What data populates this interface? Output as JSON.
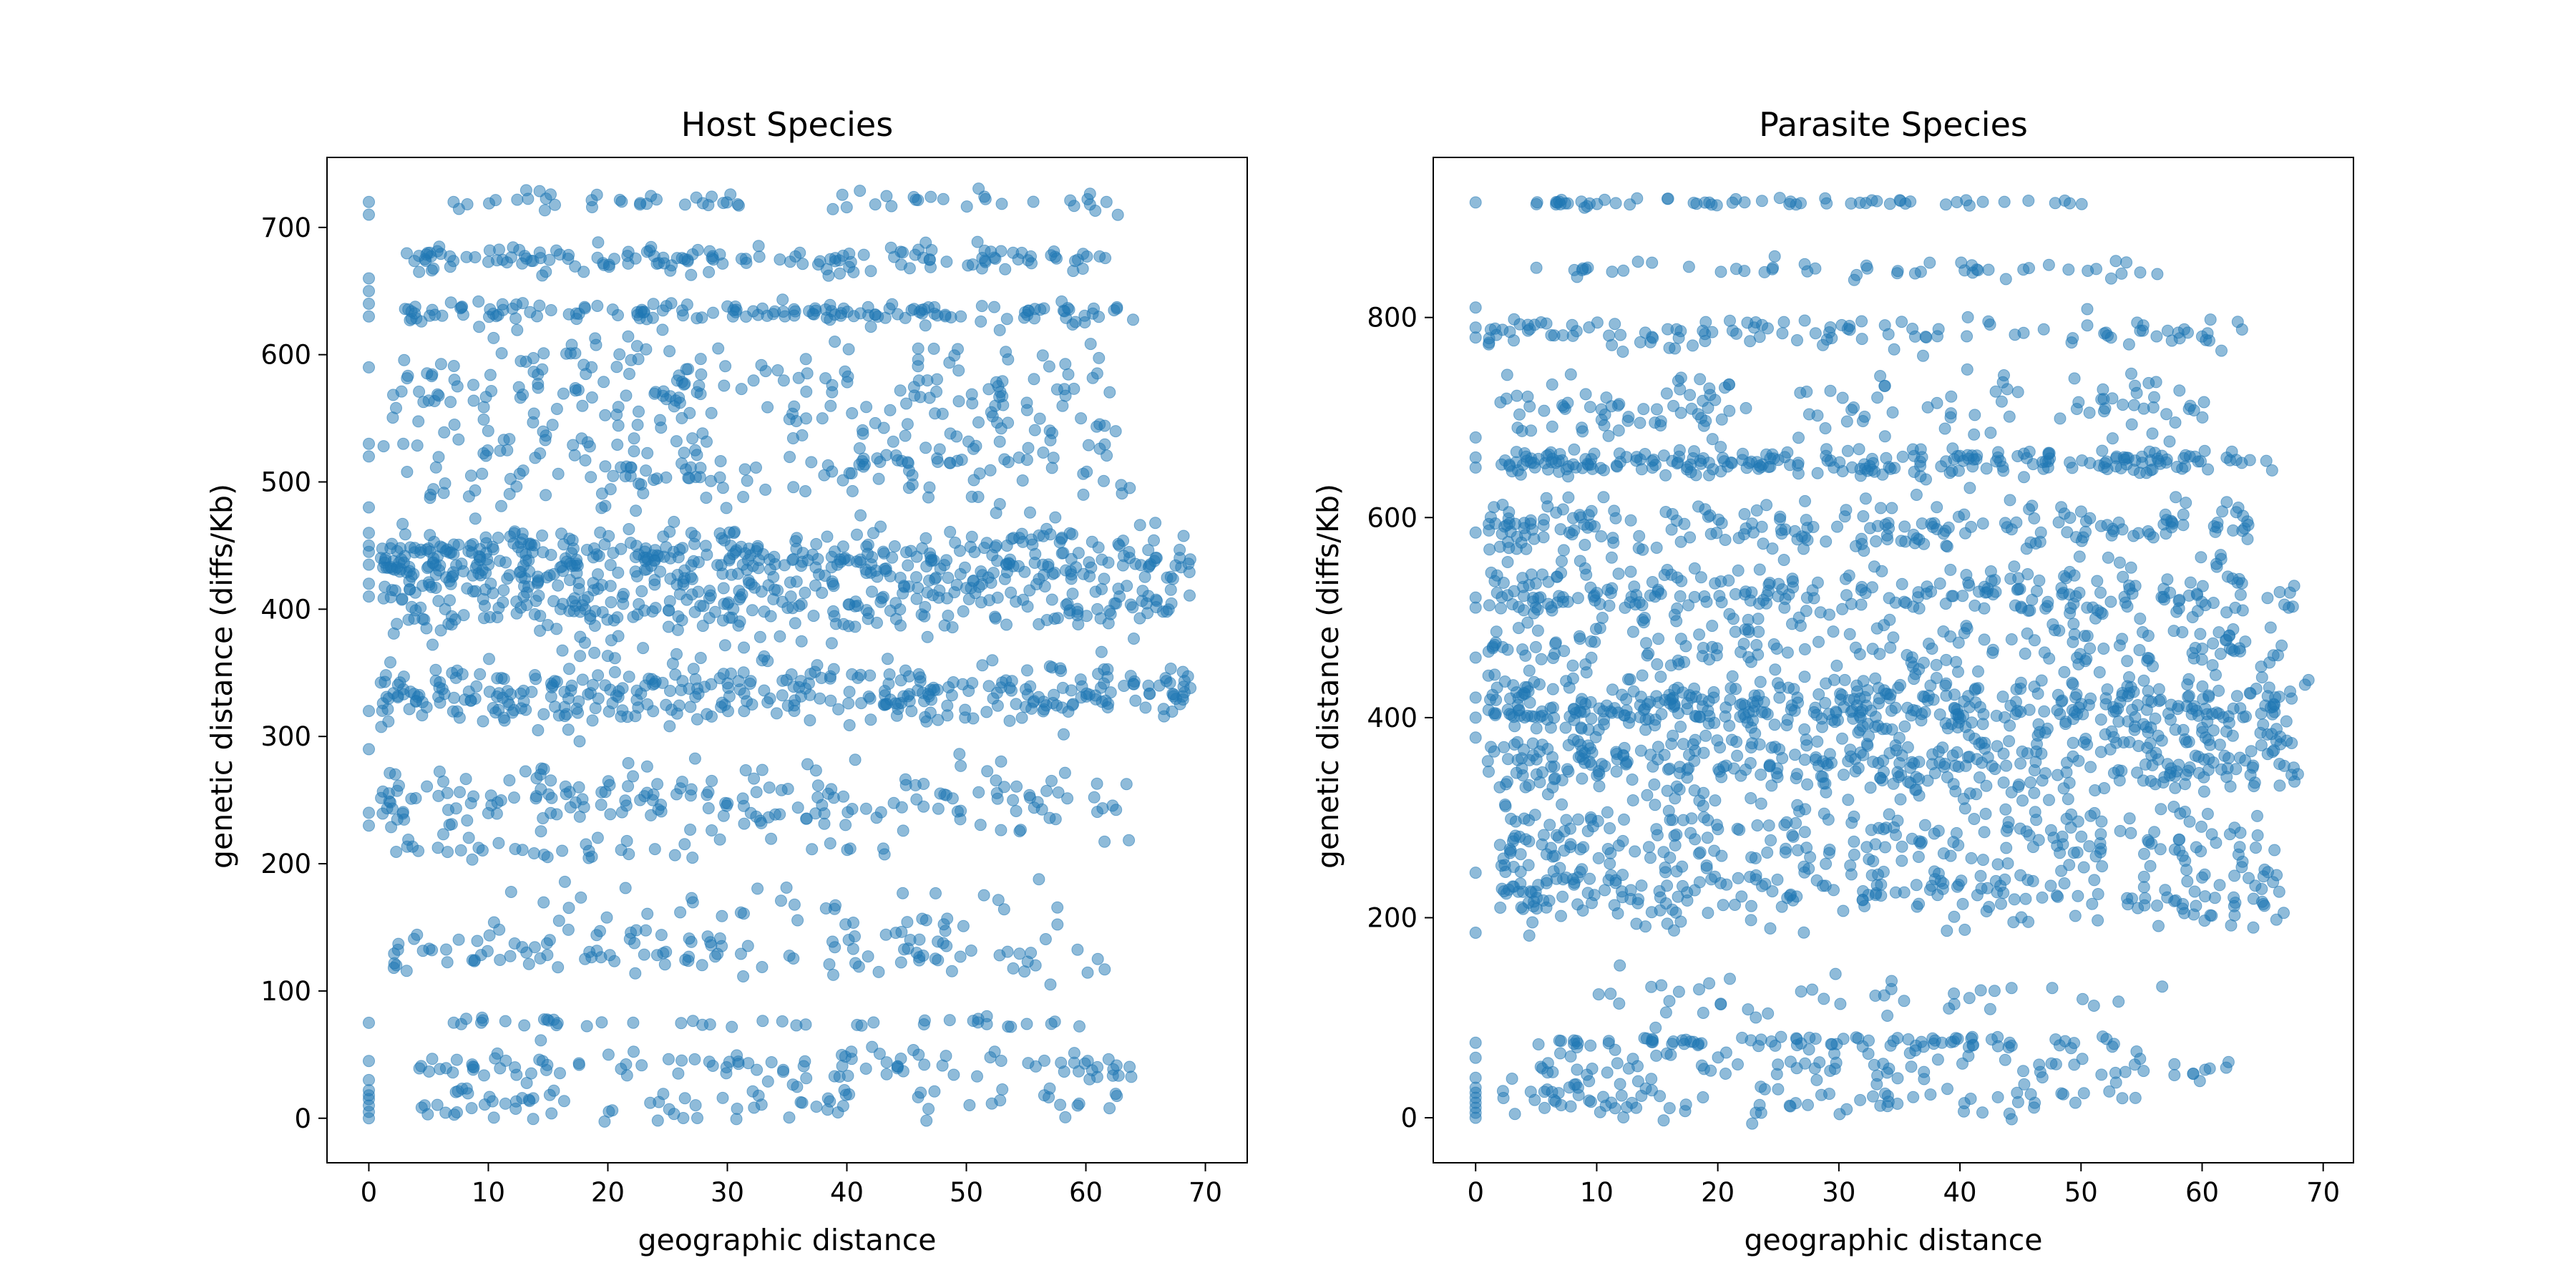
{
  "chart_data": [
    {
      "type": "scatter",
      "title": "Host Species",
      "xlabel": "geographic distance",
      "ylabel": "genetic distance (diffs/Kb)",
      "xlim": [
        -3.5,
        73.5
      ],
      "ylim": [
        -35,
        755
      ],
      "xticks": [
        0,
        10,
        20,
        30,
        40,
        50,
        60,
        70
      ],
      "yticks": [
        0,
        100,
        200,
        300,
        400,
        500,
        600,
        700
      ],
      "grid": false,
      "marker_color": "#1f77b4",
      "marker_alpha": 0.5,
      "density_bands": [
        {
          "y": 720,
          "spread": 4,
          "x_range": [
            7,
            63
          ],
          "weight": 0.35
        },
        {
          "y": 675,
          "spread": 6,
          "x_range": [
            3,
            62
          ],
          "weight": 0.9
        },
        {
          "y": 633,
          "spread": 4,
          "x_range": [
            3,
            64
          ],
          "weight": 0.9
        },
        {
          "y": 570,
          "spread": 22,
          "x_range": [
            2,
            63
          ],
          "weight": 1.3
        },
        {
          "y": 510,
          "spread": 18,
          "x_range": [
            1,
            64
          ],
          "weight": 1.0
        },
        {
          "y": 440,
          "spread": 12,
          "x_range": [
            1,
            69
          ],
          "weight": 2.4
        },
        {
          "y": 405,
          "spread": 14,
          "x_range": [
            1,
            68
          ],
          "weight": 1.8
        },
        {
          "y": 335,
          "spread": 12,
          "x_range": [
            1,
            69
          ],
          "weight": 2.2
        },
        {
          "y": 250,
          "spread": 15,
          "x_range": [
            1,
            64
          ],
          "weight": 1.2
        },
        {
          "y": 210,
          "spread": 4,
          "x_range": [
            2,
            45
          ],
          "weight": 0.2
        },
        {
          "y": 165,
          "spread": 12,
          "x_range": [
            10,
            58
          ],
          "weight": 0.25
        },
        {
          "y": 130,
          "spread": 10,
          "x_range": [
            2,
            62
          ],
          "weight": 0.7
        },
        {
          "y": 75,
          "spread": 2,
          "x_range": [
            7,
            61
          ],
          "weight": 0.25
        },
        {
          "y": 42,
          "spread": 6,
          "x_range": [
            4,
            64
          ],
          "weight": 0.6
        },
        {
          "y": 12,
          "spread": 7,
          "x_range": [
            2,
            63
          ],
          "weight": 0.5
        }
      ],
      "axis_column_x": 0,
      "axis_column_y": [
        0,
        5,
        10,
        15,
        18,
        22,
        30,
        45,
        75,
        230,
        240,
        290,
        320,
        410,
        420,
        435,
        445,
        450,
        460,
        480,
        520,
        530,
        590,
        630,
        640,
        650,
        660,
        710,
        720
      ]
    },
    {
      "type": "scatter",
      "title": "Parasite Species",
      "xlabel": "geographic distance",
      "ylabel": "genetic distance (diffs/Kb)",
      "xlim": [
        -3.5,
        72.5
      ],
      "ylim": [
        -45,
        960
      ],
      "xticks": [
        0,
        10,
        20,
        30,
        40,
        50,
        60,
        70
      ],
      "yticks": [
        0,
        200,
        400,
        600,
        800
      ],
      "grid": false,
      "marker_color": "#1f77b4",
      "marker_alpha": 0.5,
      "density_bands": [
        {
          "y": 915,
          "spread": 2,
          "x_range": [
            5,
            51
          ],
          "weight": 0.35
        },
        {
          "y": 848,
          "spread": 4,
          "x_range": [
            5,
            58
          ],
          "weight": 0.3
        },
        {
          "y": 785,
          "spread": 8,
          "x_range": [
            1,
            64
          ],
          "weight": 0.7
        },
        {
          "y": 710,
          "spread": 18,
          "x_range": [
            2,
            63
          ],
          "weight": 0.8
        },
        {
          "y": 655,
          "spread": 6,
          "x_range": [
            2,
            66
          ],
          "weight": 1.4
        },
        {
          "y": 590,
          "spread": 14,
          "x_range": [
            1,
            64
          ],
          "weight": 1.3
        },
        {
          "y": 525,
          "spread": 14,
          "x_range": [
            1,
            68
          ],
          "weight": 1.5
        },
        {
          "y": 470,
          "spread": 18,
          "x_range": [
            1,
            67
          ],
          "weight": 1.1
        },
        {
          "y": 410,
          "spread": 14,
          "x_range": [
            1,
            69
          ],
          "weight": 2.5
        },
        {
          "y": 355,
          "spread": 18,
          "x_range": [
            1,
            68
          ],
          "weight": 2.1
        },
        {
          "y": 280,
          "spread": 22,
          "x_range": [
            2,
            66
          ],
          "weight": 1.5
        },
        {
          "y": 225,
          "spread": 16,
          "x_range": [
            2,
            67
          ],
          "weight": 1.3
        },
        {
          "y": 120,
          "spread": 12,
          "x_range": [
            10,
            57
          ],
          "weight": 0.25
        },
        {
          "y": 75,
          "spread": 4,
          "x_range": [
            5,
            53
          ],
          "weight": 0.5
        },
        {
          "y": 50,
          "spread": 8,
          "x_range": [
            5,
            63
          ],
          "weight": 0.5
        },
        {
          "y": 18,
          "spread": 10,
          "x_range": [
            2,
            55
          ],
          "weight": 0.5
        }
      ],
      "axis_column_x": 0,
      "axis_column_y": [
        0,
        5,
        10,
        15,
        20,
        25,
        30,
        40,
        60,
        75,
        185,
        245,
        380,
        400,
        420,
        460,
        510,
        520,
        585,
        650,
        660,
        680,
        780,
        790,
        810,
        915
      ]
    }
  ]
}
